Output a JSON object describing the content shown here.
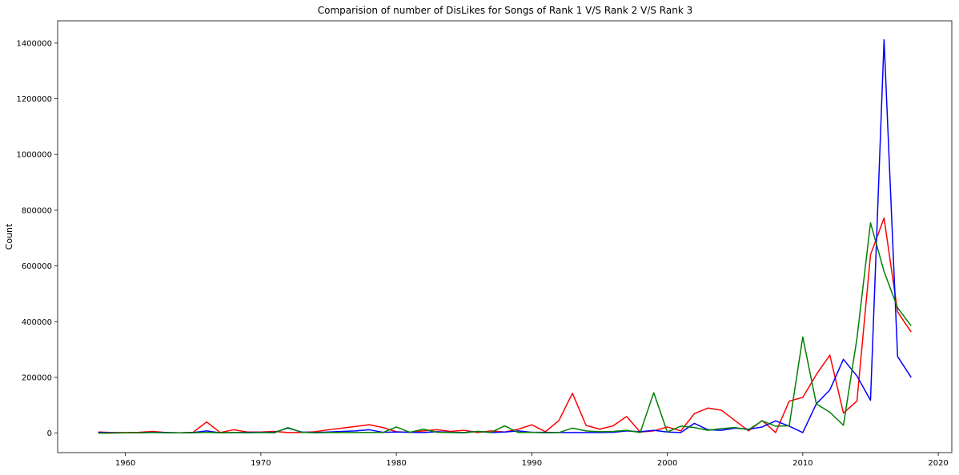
{
  "chart_data": {
    "type": "line",
    "title": "Comparision of number of DisLikes for Songs of Rank 1 V/S Rank 2 V/S Rank 3",
    "xlabel": "",
    "ylabel": "Count",
    "xlim": [
      1955,
      2021
    ],
    "ylim": [
      -70000,
      1480000
    ],
    "x_ticks": [
      1960,
      1970,
      1980,
      1990,
      2000,
      2010,
      2020
    ],
    "y_ticks": [
      0,
      200000,
      400000,
      600000,
      800000,
      1000000,
      1200000,
      1400000
    ],
    "grid": false,
    "legend": "none",
    "x": [
      1958,
      1959,
      1960,
      1961,
      1962,
      1963,
      1964,
      1965,
      1966,
      1967,
      1968,
      1969,
      1970,
      1971,
      1972,
      1973,
      1974,
      1975,
      1976,
      1977,
      1978,
      1979,
      1980,
      1981,
      1982,
      1983,
      1984,
      1985,
      1986,
      1987,
      1988,
      1989,
      1990,
      1991,
      1992,
      1993,
      1994,
      1995,
      1996,
      1997,
      1998,
      1999,
      2000,
      2001,
      2002,
      2003,
      2004,
      2005,
      2006,
      2007,
      2008,
      2009,
      2010,
      2011,
      2012,
      2013,
      2014,
      2015,
      2016,
      2017,
      2018
    ],
    "series": [
      {
        "color": "#ff0000",
        "values": [
          4000,
          2000,
          2000,
          3000,
          6000,
          2000,
          1000,
          3000,
          40000,
          2000,
          12000,
          4000,
          4000,
          6000,
          2000,
          2000,
          5000,
          12000,
          18000,
          24000,
          30000,
          20000,
          5000,
          3000,
          8000,
          12000,
          6000,
          10000,
          2000,
          8000,
          4000,
          14000,
          30000,
          5000,
          45000,
          143000,
          28000,
          14000,
          26000,
          60000,
          4000,
          8000,
          22000,
          8000,
          70000,
          90000,
          82000,
          45000,
          8000,
          45000,
          2000,
          115000,
          128000,
          210000,
          280000,
          72000,
          115000,
          640000,
          772000,
          435000,
          363000
        ]
      },
      {
        "color": "#0000ff",
        "values": [
          2000,
          1000,
          1000,
          1000,
          3000,
          2000,
          1000,
          2000,
          8000,
          1000,
          2000,
          3000,
          3000,
          3000,
          18000,
          4000,
          2000,
          4000,
          6000,
          8000,
          12000,
          3000,
          4000,
          3000,
          2000,
          5000,
          3000,
          2000,
          6000,
          2000,
          4000,
          8000,
          3000,
          3000,
          2000,
          2000,
          2000,
          2000,
          3000,
          8000,
          5000,
          10000,
          4000,
          2000,
          35000,
          12000,
          10000,
          18000,
          14000,
          22000,
          44000,
          25000,
          2000,
          105000,
          155000,
          265000,
          205000,
          118000,
          1412000,
          275000,
          200000
        ]
      },
      {
        "color": "#008000",
        "values": [
          0,
          0,
          1000,
          1000,
          2000,
          1000,
          1000,
          1000,
          3000,
          1000,
          2000,
          1000,
          2000,
          1000,
          20000,
          3000,
          1000,
          2000,
          2000,
          2000,
          3000,
          2000,
          22000,
          3000,
          14000,
          3000,
          2000,
          1000,
          6000,
          3000,
          26000,
          2000,
          3000,
          1000,
          2000,
          18000,
          8000,
          5000,
          6000,
          10000,
          2000,
          145000,
          4000,
          25000,
          20000,
          10000,
          16000,
          20000,
          12000,
          44000,
          25000,
          26000,
          345000,
          105000,
          75000,
          28000,
          340000,
          755000,
          580000,
          450000,
          385000
        ]
      }
    ]
  }
}
